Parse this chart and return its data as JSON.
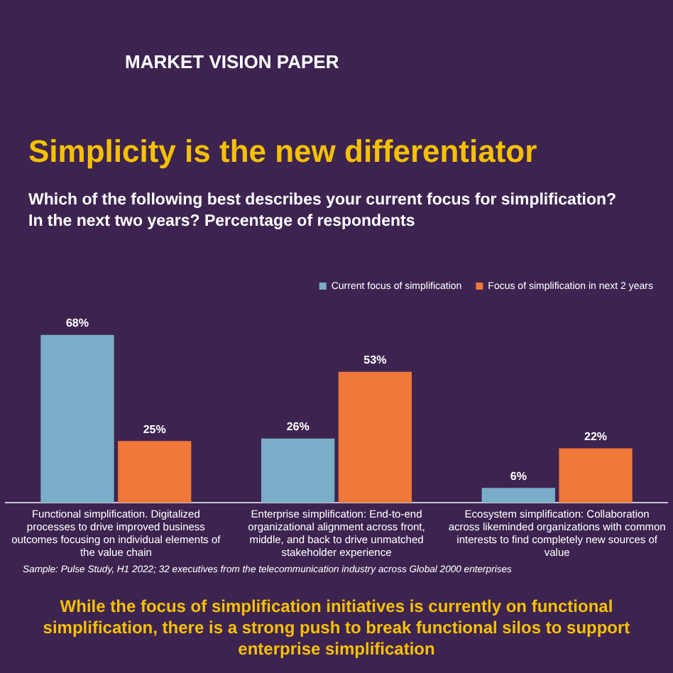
{
  "chart_data": {
    "type": "bar",
    "title": "Simplicity is the new differentiator",
    "subtitle": "Which of the following best describes your current focus for simplification? In the next two years? Percentage of respondents",
    "categories": [
      "Functional simplification. Digitalized processes to drive improved business outcomes focusing on individual elements of the value chain",
      "Enterprise simplification: End-to-end organizational alignment across front, middle, and back to drive unmatched stakeholder experience",
      "Ecosystem simplification: Collaboration across likeminded organizations with common interests to find completely new sources of value"
    ],
    "series": [
      {
        "name": "Current focus of simplification",
        "color": "#7aaec8",
        "values": [
          68,
          26,
          6
        ],
        "value_labels": [
          "68%",
          "26%",
          "6%"
        ]
      },
      {
        "name": "Focus of simplification in next 2 years",
        "color": "#f07838",
        "values": [
          25,
          53,
          22
        ],
        "value_labels": [
          "25%",
          "53%",
          "22%"
        ]
      }
    ],
    "legend": "top right",
    "annotations": [
      "MARKET VISION PAPER",
      "Sample: Pulse Study, H1 2022; 32 executives from the telecommunication industry across Global 2000 enterprises",
      "While the focus of simplification initiatives is currently on functional simplification, there is a strong push to break functional silos to support enterprise simplification"
    ]
  }
}
